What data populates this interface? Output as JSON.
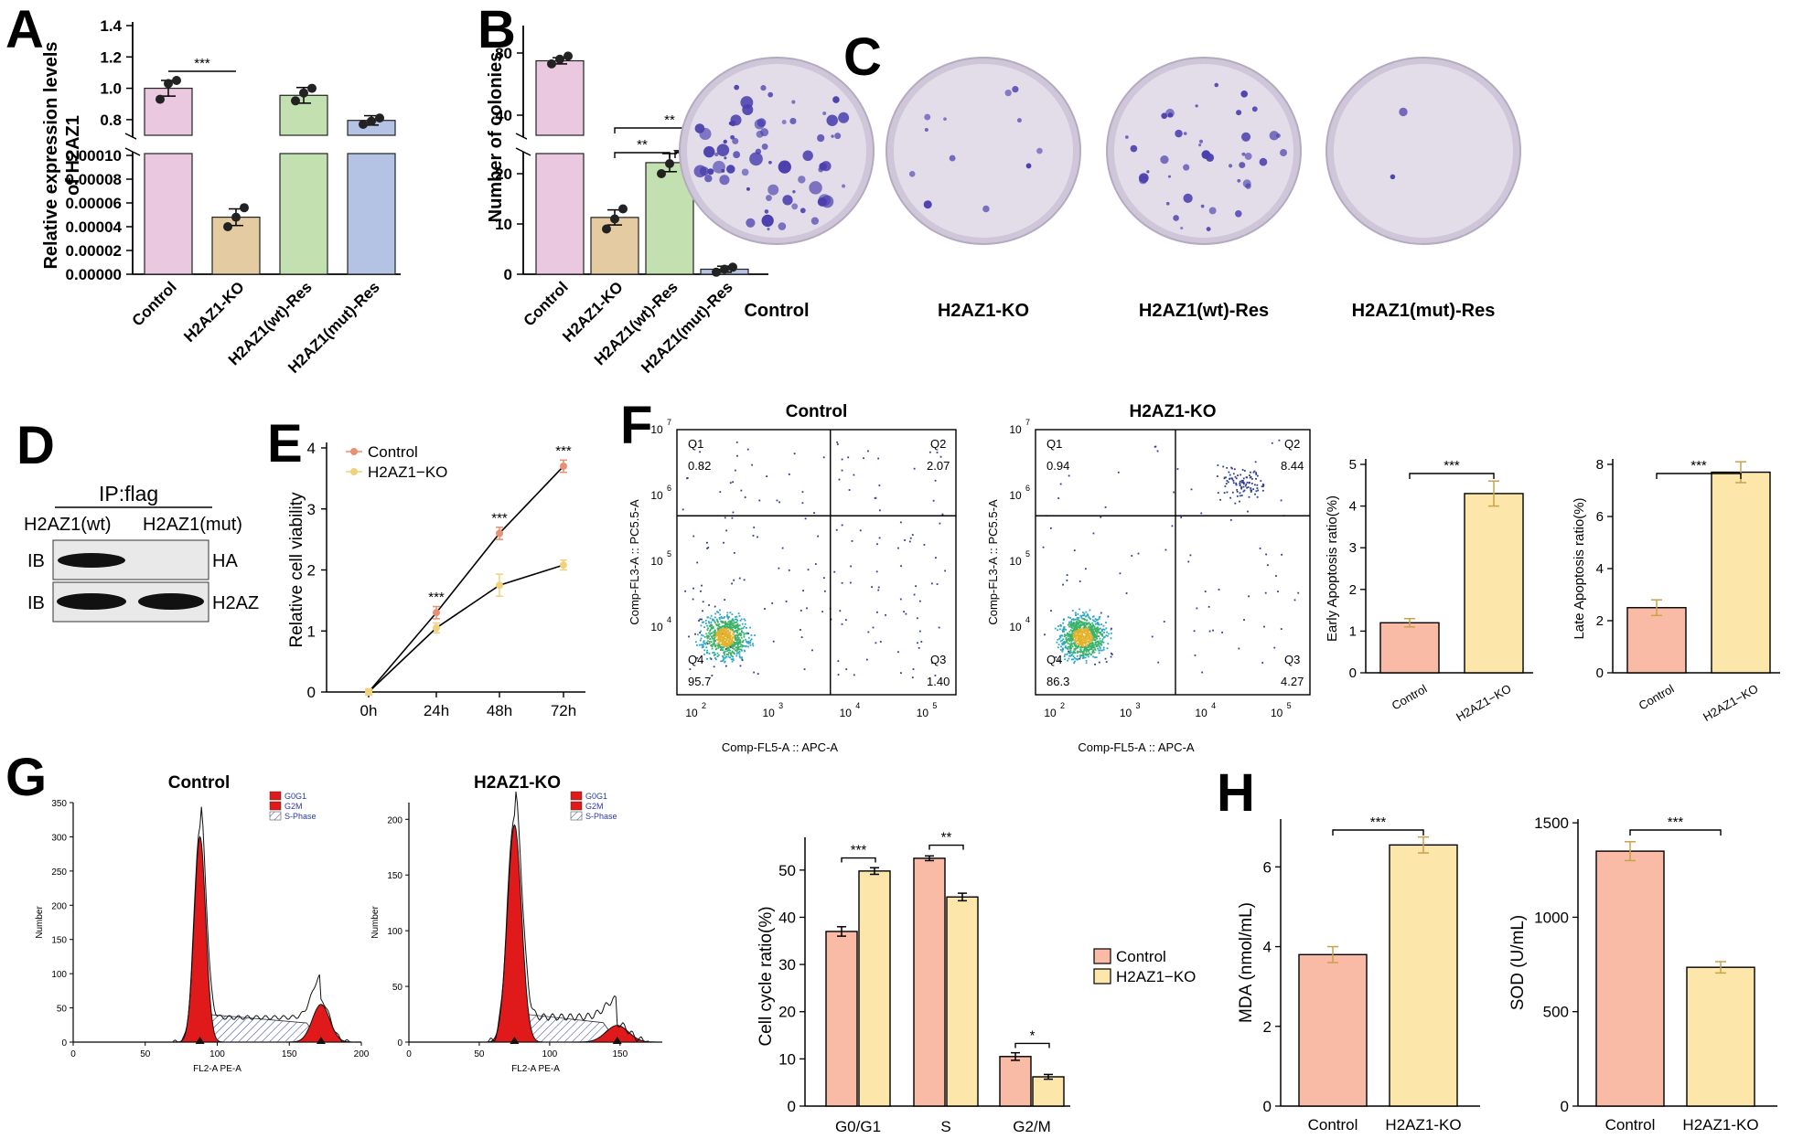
{
  "panels": {
    "A": {
      "label": "A",
      "ylabel_line1": "Relative expression levels",
      "ylabel_line2": "of H2AZ1"
    },
    "B": {
      "label": "B",
      "ylabel": "Number of colonies"
    },
    "C": {
      "label": "C"
    },
    "D": {
      "label": "D"
    },
    "E": {
      "label": "E"
    },
    "F": {
      "label": "F"
    },
    "G": {
      "label": "G"
    },
    "H": {
      "label": "H"
    }
  },
  "palette": {
    "pink": "#eac8e0",
    "tan": "#e4cba2",
    "green": "#c3e0b0",
    "blue": "#b4c3e4",
    "salmon": "#f9bba6",
    "yellow": "#fce6a9",
    "dish_bg": "#e3dde9",
    "colony": "#4a3fae"
  },
  "chart_data": [
    {
      "id": "A",
      "type": "bar",
      "categories": [
        "Control",
        "H2AZ1-KO",
        "H2AZ1(wt)-Res",
        "H2AZ1(mut)-Res"
      ],
      "values": [
        1.0,
        4.8e-05,
        0.955,
        0.795
      ],
      "errors": [
        0.05,
        7e-06,
        0.05,
        0.03
      ],
      "points": [
        [
          0.93,
          1.03,
          1.05
        ],
        [
          4e-05,
          4.8e-05,
          5.6e-05
        ],
        [
          0.92,
          0.97,
          1.0
        ],
        [
          0.77,
          0.79,
          0.81
        ]
      ],
      "ylabel": "Relative expression levels of H2AZ1",
      "y_axis_break": true,
      "ylim_upper": [
        0.7,
        1.4
      ],
      "ylim_lower": [
        0,
        0.0001
      ],
      "upper_ticks": [
        "1.4",
        "1.2",
        "1.0",
        "0.8"
      ],
      "lower_ticks": [
        "0.00010",
        "0.00008",
        "0.00006",
        "0.00004",
        "0.00002",
        "0.00000"
      ],
      "annotations": [
        {
          "from": "Control",
          "to": "H2AZ1-KO",
          "text": "***"
        }
      ]
    },
    {
      "id": "B",
      "type": "bar",
      "categories": [
        "Control",
        "H2AZ1-KO",
        "H2AZ1(wt)-Res",
        "H2AZ1(mut)-Res"
      ],
      "values": [
        75,
        11.3,
        22.2,
        1.0
      ],
      "errors": [
        2,
        1.5,
        1.8,
        0.6
      ],
      "points": [
        [
          73,
          76,
          78
        ],
        [
          9,
          11,
          13
        ],
        [
          20,
          22,
          25
        ],
        [
          0.4,
          1.0,
          1.4
        ]
      ],
      "ylabel": "Number of colonies",
      "y_axis_break": true,
      "ylim_upper": [
        25,
        90
      ],
      "ylim_lower": [
        0,
        25
      ],
      "upper_ticks": [
        "80",
        "40"
      ],
      "lower_ticks": [
        "20",
        "10",
        "0"
      ],
      "annotations": [
        {
          "from": "H2AZ1-KO",
          "to": "H2AZ1(mut)-Res",
          "text": "**"
        },
        {
          "from": "H2AZ1-KO",
          "to": "H2AZ1(wt)-Res",
          "text": "**"
        },
        {
          "from": "H2AZ1(wt)-Res",
          "to": "H2AZ1(mut)-Res",
          "text": "***"
        }
      ]
    },
    {
      "id": "E",
      "type": "line",
      "x": [
        "0h",
        "24h",
        "48h",
        "72h"
      ],
      "series": [
        {
          "name": "Control",
          "values": [
            0,
            1.3,
            2.6,
            3.7
          ],
          "errors": [
            0.05,
            0.1,
            0.1,
            0.1
          ],
          "color": "#e88f74"
        },
        {
          "name": "H2AZ1−KO",
          "values": [
            0,
            1.05,
            1.75,
            2.08
          ],
          "errors": [
            0.05,
            0.08,
            0.18,
            0.08
          ],
          "color": "#f0d27a"
        }
      ],
      "ylabel": "Relative cell viability",
      "ylim": [
        0,
        4
      ],
      "yticks": [
        "0",
        "1",
        "2",
        "3",
        "4"
      ],
      "annotations": [
        {
          "x": "24h",
          "text": "***"
        },
        {
          "x": "48h",
          "text": "***"
        },
        {
          "x": "72h",
          "text": "***"
        }
      ]
    },
    {
      "id": "F-scatter",
      "type": "scatter",
      "plots": [
        {
          "title": "Control",
          "q1": "0.82",
          "q2": "2.07",
          "q3": "1.40",
          "q4": "95.7"
        },
        {
          "title": "H2AZ1-KO",
          "q1": "0.94",
          "q2": "8.44",
          "q3": "4.27",
          "q4": "86.3"
        }
      ],
      "quadrant_labels": [
        "Q1",
        "Q2",
        "Q3",
        "Q4"
      ],
      "xlabel": "Comp-FL5-A :: APC-A",
      "ylabel": "Comp-FL3-A :: PC5.5-A",
      "xticks": [
        "10",
        "10",
        "10",
        "10"
      ],
      "xtick_exp": [
        "2",
        "3",
        "4",
        "5"
      ],
      "yticks": [
        "10",
        "10",
        "10",
        "10"
      ],
      "ytick_exp": [
        "4",
        "5",
        "6",
        "7"
      ]
    },
    {
      "id": "F-early",
      "type": "bar",
      "categories": [
        "Control",
        "H2AZ1−KO"
      ],
      "values": [
        1.2,
        4.3
      ],
      "errors": [
        0.1,
        0.3
      ],
      "ylabel": "Early Apoptosis ratio(%)",
      "ylim": [
        0,
        5
      ],
      "yticks": [
        "0",
        "1",
        "2",
        "3",
        "4",
        "5"
      ],
      "annotation": "***"
    },
    {
      "id": "F-late",
      "type": "bar",
      "categories": [
        "Control",
        "H2AZ1−KO"
      ],
      "values": [
        2.5,
        7.7
      ],
      "errors": [
        0.3,
        0.4
      ],
      "ylabel": "Late Apoptosis ratio(%)",
      "ylim": [
        0,
        8
      ],
      "yticks": [
        "0",
        "2",
        "4",
        "6",
        "8"
      ],
      "annotation": "***"
    },
    {
      "id": "G-hist",
      "type": "area",
      "plots": [
        {
          "title": "Control",
          "yticks": [
            "0",
            "50",
            "100",
            "150",
            "200",
            "250",
            "300",
            "350"
          ],
          "xticks": [
            "0",
            "50",
            "100",
            "150",
            "200"
          ]
        },
        {
          "title": "H2AZ1-KO",
          "yticks": [
            "0",
            "50",
            "100",
            "150",
            "200"
          ],
          "xticks": [
            "0",
            "50",
            "100",
            "150"
          ]
        }
      ],
      "legend": [
        "G0G1",
        "G2M",
        "S-Phase"
      ],
      "xlabel": "FL2-A PE-A",
      "ylabel": "Number"
    },
    {
      "id": "G-bar",
      "type": "bar",
      "categories": [
        "G0/G1",
        "S",
        "G2/M"
      ],
      "series": [
        {
          "name": "Control",
          "values": [
            37,
            52.5,
            10.5
          ],
          "errors": [
            1,
            0.5,
            0.8
          ]
        },
        {
          "name": "H2AZ1−KO",
          "values": [
            49.8,
            44.3,
            6.2
          ],
          "errors": [
            0.7,
            0.8,
            0.5
          ]
        }
      ],
      "ylabel": "Cell cycle ratio(%)",
      "ylim": [
        0,
        55
      ],
      "yticks": [
        "0",
        "10",
        "20",
        "30",
        "40",
        "50"
      ],
      "annotations": [
        "***",
        "**",
        "*"
      ]
    },
    {
      "id": "H-MDA",
      "type": "bar",
      "categories": [
        "Control",
        "H2AZ1-KO"
      ],
      "values": [
        3.8,
        6.55
      ],
      "errors": [
        0.2,
        0.2
      ],
      "ylabel": "MDA (nmol/mL)",
      "ylim": [
        0,
        7.2
      ],
      "yticks": [
        "0",
        "2",
        "4",
        "6"
      ],
      "annotation": "***"
    },
    {
      "id": "H-SOD",
      "type": "bar",
      "categories": [
        "Control",
        "H2AZ1-KO"
      ],
      "values": [
        1350,
        735
      ],
      "errors": [
        50,
        30
      ],
      "ylabel": "SOD (U/mL)",
      "ylim": [
        0,
        1520
      ],
      "yticks": [
        "0",
        "500",
        "1000",
        "1500"
      ],
      "annotation": "***"
    }
  ],
  "dishes": [
    "Control",
    "H2AZ1-KO",
    "H2AZ1(wt)-Res",
    "H2AZ1(mut)-Res"
  ],
  "blot": {
    "title": "IP:flag",
    "lanes": [
      "H2AZ1(wt)",
      "H2AZ1(mut)"
    ],
    "rows": [
      {
        "left": "IB",
        "right": "HA"
      },
      {
        "left": "IB",
        "right": "H2AZ"
      }
    ]
  }
}
